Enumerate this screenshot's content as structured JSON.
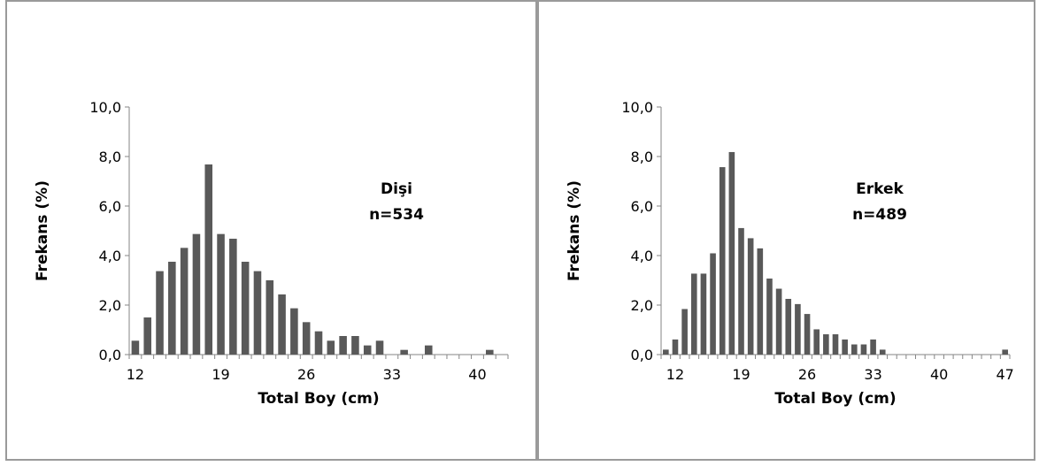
{
  "chart_data": [
    {
      "type": "bar",
      "xlabel": "Total Boy (cm)",
      "ylabel": "Frekans (%)",
      "annotation": [
        "Dişi",
        "n=534"
      ],
      "ylim": [
        0,
        10
      ],
      "yticks": [
        "0,0",
        "2,0",
        "4,0",
        "6,0",
        "8,0",
        "10,0"
      ],
      "xticks": [
        "12",
        "19",
        "26",
        "33",
        "40"
      ],
      "categories": [
        12,
        13,
        14,
        15,
        16,
        17,
        18,
        19,
        20,
        21,
        22,
        23,
        24,
        25,
        26,
        27,
        28,
        29,
        30,
        31,
        32,
        33,
        34,
        35,
        36,
        37,
        38,
        39,
        40,
        41,
        42
      ],
      "values": [
        0.56,
        1.5,
        3.37,
        3.75,
        4.31,
        4.87,
        7.68,
        4.87,
        4.68,
        3.75,
        3.37,
        3.0,
        2.43,
        1.87,
        1.31,
        0.94,
        0.56,
        0.75,
        0.75,
        0.37,
        0.56,
        0,
        0.19,
        0,
        0.37,
        0,
        0,
        0,
        0,
        0.19,
        0
      ],
      "color": "#595959"
    },
    {
      "type": "bar",
      "xlabel": "Total Boy (cm)",
      "ylabel": "Frekans (%)",
      "annotation": [
        "Erkek",
        "n=489"
      ],
      "ylim": [
        0,
        10
      ],
      "yticks": [
        "0,0",
        "2,0",
        "4,0",
        "6,0",
        "8,0",
        "10,0"
      ],
      "xticks": [
        "12",
        "19",
        "26",
        "33",
        "40",
        "47"
      ],
      "categories": [
        11,
        12,
        13,
        14,
        15,
        16,
        17,
        18,
        19,
        20,
        21,
        22,
        23,
        24,
        25,
        26,
        27,
        28,
        29,
        30,
        31,
        32,
        33,
        34,
        35,
        36,
        37,
        38,
        39,
        40,
        41,
        42,
        43,
        44,
        45,
        46,
        47
      ],
      "values": [
        0.2,
        0.61,
        1.84,
        3.27,
        3.27,
        4.09,
        7.57,
        8.18,
        5.11,
        4.7,
        4.29,
        3.07,
        2.66,
        2.25,
        2.04,
        1.64,
        1.02,
        0.82,
        0.82,
        0.61,
        0.41,
        0.41,
        0.61,
        0.2,
        0,
        0,
        0,
        0,
        0,
        0,
        0,
        0,
        0,
        0,
        0,
        0,
        0.2
      ],
      "color": "#595959"
    }
  ]
}
